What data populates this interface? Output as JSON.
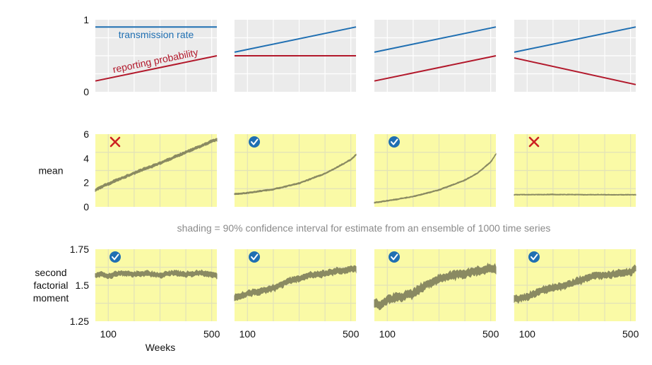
{
  "colors": {
    "transmission": "#1f6fb2",
    "reporting": "#b2182b",
    "top_panel_bg": "#ebebeb",
    "bottom_panel_bg": "#fafaa6",
    "band": "#8a8a62",
    "cross": "#cc2222",
    "check": "#1f6fb2"
  },
  "caption": "shading = 90% confidence interval for estimate from an ensemble of 1000 time series",
  "x_axis": {
    "label": "Weeks",
    "ticks": [
      100,
      500
    ],
    "range": [
      50,
      520
    ]
  },
  "rows": [
    {
      "id": "parameters",
      "label": [],
      "ylim": [
        0,
        1
      ],
      "ticks": [
        0,
        1
      ]
    },
    {
      "id": "mean",
      "label": [
        "mean"
      ],
      "ylim": [
        0,
        6
      ],
      "ticks": [
        0,
        2,
        4,
        6
      ]
    },
    {
      "id": "second-factorial-moment",
      "label": [
        "second",
        "factorial",
        "moment"
      ],
      "ylim": [
        1.25,
        1.75
      ],
      "ticks": [
        1.25,
        1.5,
        1.75
      ]
    }
  ],
  "chart_data": [
    {
      "type": "line",
      "row": "parameters",
      "column": 1,
      "x": [
        50,
        520
      ],
      "ylim": [
        0,
        1
      ],
      "series": [
        {
          "name": "transmission rate",
          "values": [
            0.9,
            0.9
          ]
        },
        {
          "name": "reporting probability",
          "values": [
            0.15,
            0.5
          ]
        }
      ]
    },
    {
      "type": "line",
      "row": "parameters",
      "column": 2,
      "x": [
        50,
        520
      ],
      "ylim": [
        0,
        1
      ],
      "series": [
        {
          "values": [
            0.55,
            0.9
          ]
        },
        {
          "values": [
            0.5,
            0.5
          ]
        }
      ]
    },
    {
      "type": "line",
      "row": "parameters",
      "column": 3,
      "x": [
        50,
        520
      ],
      "ylim": [
        0,
        1
      ],
      "series": [
        {
          "values": [
            0.55,
            0.9
          ]
        },
        {
          "values": [
            0.15,
            0.5
          ]
        }
      ]
    },
    {
      "type": "line",
      "row": "parameters",
      "column": 4,
      "x": [
        50,
        520
      ],
      "ylim": [
        0,
        1
      ],
      "series": [
        {
          "values": [
            0.55,
            0.9
          ]
        },
        {
          "values": [
            0.47,
            0.1
          ]
        }
      ]
    },
    {
      "type": "area",
      "row": "mean",
      "column": 1,
      "mark": "cross",
      "x": [
        50,
        100,
        200,
        300,
        400,
        500,
        520
      ],
      "ylim": [
        0,
        6
      ],
      "center": [
        1.4,
        1.9,
        2.8,
        3.6,
        4.5,
        5.4,
        5.55
      ],
      "halfwidth": 0.1
    },
    {
      "type": "area",
      "row": "mean",
      "column": 2,
      "mark": "check",
      "x": [
        50,
        100,
        200,
        300,
        400,
        450,
        500,
        520
      ],
      "ylim": [
        0,
        6
      ],
      "center": [
        1.05,
        1.15,
        1.45,
        1.95,
        2.75,
        3.3,
        3.9,
        4.3
      ],
      "halfwidth": 0.05
    },
    {
      "type": "area",
      "row": "mean",
      "column": 3,
      "mark": "check",
      "x": [
        50,
        100,
        200,
        300,
        400,
        450,
        500,
        520
      ],
      "ylim": [
        0,
        6
      ],
      "center": [
        0.35,
        0.5,
        0.85,
        1.4,
        2.2,
        2.8,
        3.7,
        4.35
      ],
      "halfwidth": 0.04
    },
    {
      "type": "area",
      "row": "mean",
      "column": 4,
      "mark": "cross",
      "x": [
        50,
        200,
        350,
        520
      ],
      "ylim": [
        0,
        6
      ],
      "center": [
        1.0,
        1.02,
        1.0,
        1.0
      ],
      "halfwidth": 0.03
    },
    {
      "type": "area",
      "row": "second-factorial-moment",
      "column": 1,
      "mark": "check",
      "x": [
        50,
        70,
        100,
        150,
        200,
        250,
        300,
        350,
        400,
        450,
        500,
        520
      ],
      "ylim": [
        1.25,
        1.75
      ],
      "center": [
        1.565,
        1.58,
        1.565,
        1.585,
        1.575,
        1.58,
        1.57,
        1.585,
        1.575,
        1.585,
        1.575,
        1.565
      ],
      "halfwidth": 0.015
    },
    {
      "type": "area",
      "row": "second-factorial-moment",
      "column": 2,
      "mark": "check",
      "x": [
        50,
        100,
        150,
        200,
        250,
        300,
        350,
        400,
        450,
        500,
        520
      ],
      "ylim": [
        1.25,
        1.75
      ],
      "center": [
        1.41,
        1.44,
        1.46,
        1.48,
        1.52,
        1.55,
        1.57,
        1.58,
        1.6,
        1.61,
        1.615
      ],
      "halfwidth": 0.018
    },
    {
      "type": "area",
      "row": "second-factorial-moment",
      "column": 3,
      "mark": "check",
      "x": [
        50,
        70,
        100,
        150,
        200,
        250,
        300,
        350,
        400,
        450,
        500,
        520
      ],
      "ylim": [
        1.25,
        1.75
      ],
      "center": [
        1.38,
        1.36,
        1.4,
        1.42,
        1.44,
        1.5,
        1.54,
        1.57,
        1.58,
        1.6,
        1.615,
        1.61
      ],
      "halfwidth": 0.025
    },
    {
      "type": "area",
      "row": "second-factorial-moment",
      "column": 4,
      "mark": "check",
      "x": [
        50,
        100,
        150,
        200,
        250,
        300,
        350,
        400,
        450,
        500,
        520
      ],
      "ylim": [
        1.25,
        1.75
      ],
      "center": [
        1.4,
        1.42,
        1.46,
        1.48,
        1.5,
        1.53,
        1.56,
        1.57,
        1.58,
        1.59,
        1.62
      ],
      "halfwidth": 0.02
    }
  ]
}
